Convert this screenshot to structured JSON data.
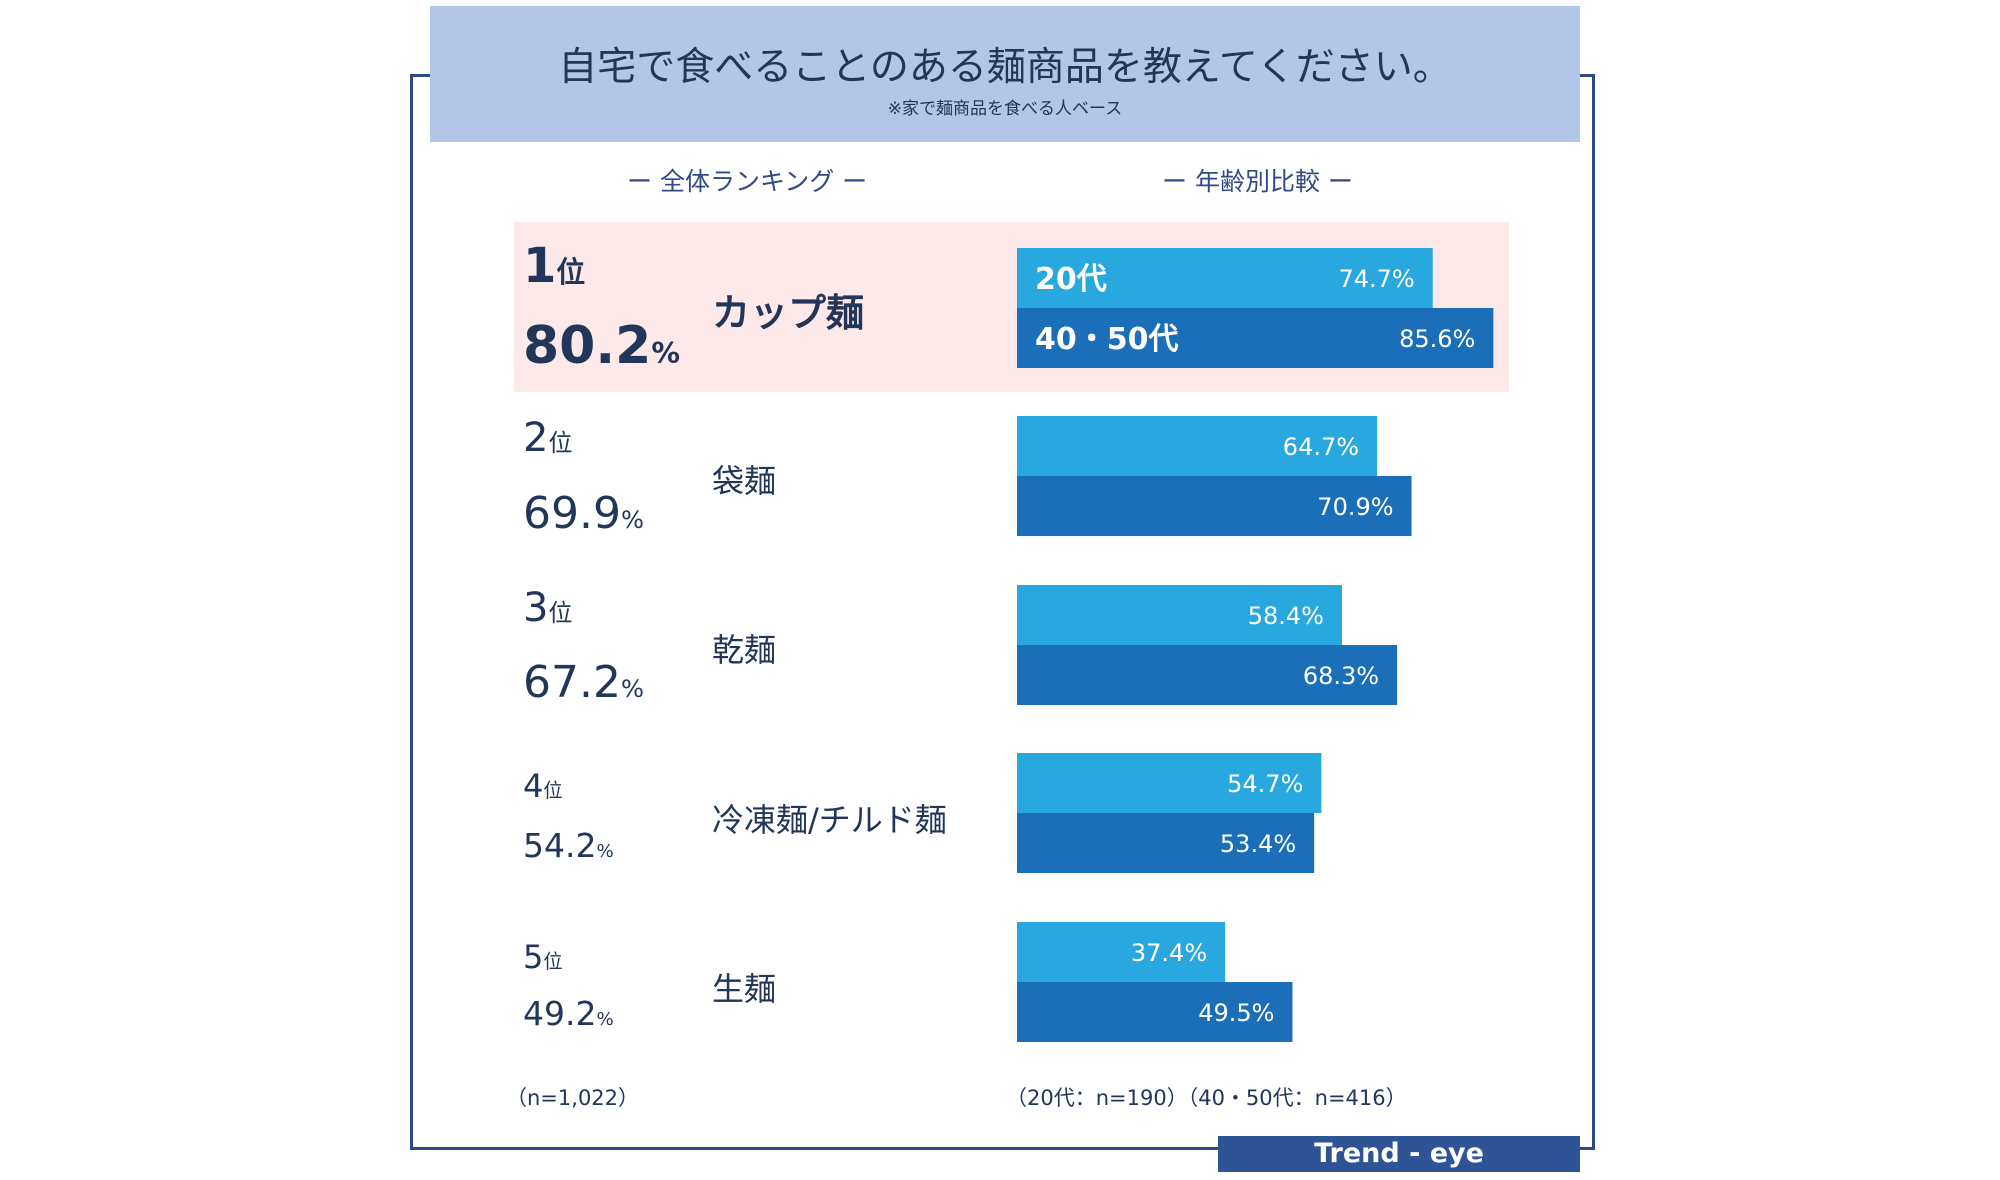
{
  "title": "自宅で食べることのある麺商品を教えてください。",
  "subtitle": "※家で麺商品を食べる人ベース",
  "section_left": "ー 全体ランキング ー",
  "section_right": "ー 年齢別比較 ー",
  "ranking": [
    {
      "rank": "1",
      "rank_unit": "位",
      "value": "80.2",
      "value_unit": "%",
      "product": "カップ麺"
    },
    {
      "rank": "2",
      "rank_unit": "位",
      "value": "69.9",
      "value_unit": "%",
      "product": "袋麺"
    },
    {
      "rank": "3",
      "rank_unit": "位",
      "value": "67.2",
      "value_unit": "%",
      "product": "乾麺"
    },
    {
      "rank": "4",
      "rank_unit": "位",
      "value": "54.2",
      "value_unit": "%",
      "product": "冷凍麺/チルド麺"
    },
    {
      "rank": "5",
      "rank_unit": "位",
      "value": "49.2",
      "value_unit": "%",
      "product": "生麺"
    }
  ],
  "chart_data": {
    "type": "bar",
    "orientation": "horizontal",
    "categories": [
      "カップ麺",
      "袋麺",
      "乾麺",
      "冷凍麺/チルド麺",
      "生麺"
    ],
    "series": [
      {
        "name": "20代",
        "values": [
          74.7,
          64.7,
          58.4,
          54.7,
          37.4
        ],
        "labels": [
          "74.7%",
          "64.7%",
          "58.4%",
          "54.7%",
          "37.4%"
        ],
        "color": "#29a8e0"
      },
      {
        "name": "40・50代",
        "values": [
          85.6,
          70.9,
          68.3,
          53.4,
          49.5
        ],
        "labels": [
          "85.6%",
          "70.9%",
          "68.3%",
          "53.4%",
          "49.5%"
        ],
        "color": "#1b6fb8"
      }
    ],
    "xlim": [
      0,
      100
    ]
  },
  "note_left": "（n=1,022）",
  "note_right": "（20代：n=190）（40・50代：n=416）",
  "brand": "Trend - eye",
  "colors": {
    "title_bg": "#b4c6e7",
    "highlight": "#fde9e9",
    "frame": "#2f4a86",
    "brand_bg": "#2f5496"
  }
}
